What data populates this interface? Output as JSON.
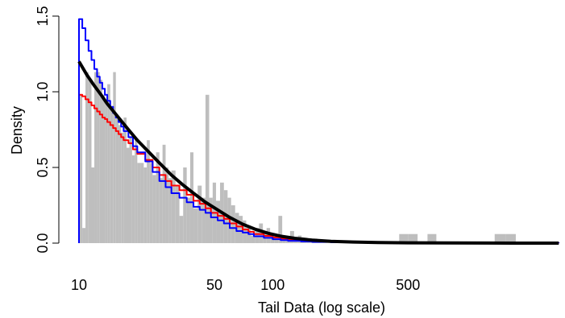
{
  "chart_data": {
    "type": "histogram",
    "title": "",
    "xlabel": "Tail Data (log scale)",
    "ylabel": "Density",
    "x_scale": "log",
    "xlim": [
      10,
      3200
    ],
    "ylim": [
      0,
      1.5
    ],
    "x_ticks": [
      {
        "value": 10,
        "label": "10"
      },
      {
        "value": 50,
        "label": "50"
      },
      {
        "value": 100,
        "label": "100"
      },
      {
        "value": 500,
        "label": "500"
      }
    ],
    "y_ticks": [
      {
        "value": 0.0,
        "label": "0.0"
      },
      {
        "value": 0.5,
        "label": "0.5"
      },
      {
        "value": 1.0,
        "label": "1.0"
      },
      {
        "value": 1.5,
        "label": "1.5"
      }
    ],
    "grid": false,
    "colors": {
      "histogram": "#bebebe",
      "fitted_curve": "#000000",
      "blue_series": "#0000ff",
      "red_series": "#ff0000"
    },
    "histogram": {
      "bin_edges": [
        10,
        10.4,
        10.8,
        11.2,
        11.6,
        12,
        12.4,
        12.8,
        13.2,
        13.6,
        14,
        14.5,
        15,
        15.5,
        16,
        16.5,
        17,
        17.6,
        18.2,
        18.8,
        19.4,
        20,
        20.8,
        21.6,
        22.4,
        23.2,
        24,
        25,
        26,
        27,
        28,
        29,
        30,
        31.5,
        33,
        34.5,
        36,
        37.5,
        39,
        41,
        43,
        45,
        47,
        49,
        51,
        53.5,
        56,
        58.5,
        61,
        64,
        67,
        70,
        73,
        77,
        81,
        85,
        89,
        93,
        97,
        102,
        107,
        112,
        117,
        123,
        129,
        135,
        141,
        150,
        160,
        170,
        180,
        200,
        220,
        250,
        280,
        320,
        360,
        400,
        450,
        500,
        560,
        630,
        700,
        800,
        900,
        1000,
        1200,
        1400,
        1600,
        1800,
        2000,
        2300,
        2600,
        3000
      ],
      "densities": [
        0.98,
        0.1,
        1.13,
        1.08,
        0.5,
        1.13,
        1.13,
        1.08,
        0.98,
        0.93,
        1.05,
        0.88,
        1.13,
        0.83,
        0.78,
        0.73,
        0.83,
        0.63,
        0.7,
        0.58,
        0.68,
        0.53,
        0.53,
        0.5,
        0.68,
        0.53,
        0.45,
        0.6,
        0.43,
        0.65,
        0.5,
        0.43,
        0.48,
        0.38,
        0.18,
        0.5,
        0.3,
        0.6,
        0.23,
        0.38,
        0.3,
        0.98,
        0.3,
        0.4,
        0.28,
        0.4,
        0.35,
        0.3,
        0.25,
        0.2,
        0.18,
        0.15,
        0.1,
        0.05,
        0.1,
        0.13,
        0.08,
        0.1,
        0.05,
        0.03,
        0.18,
        0.05,
        0.03,
        0.08,
        0.03,
        0.05,
        0.03,
        0.02,
        0.03,
        0.01,
        0.02,
        0.01,
        0.01,
        0.01,
        0.01,
        0.0,
        0.01,
        0.0,
        0.06,
        0.06,
        0.0,
        0.06,
        0.0,
        0.0,
        0.0,
        0.0,
        0.0,
        0.06,
        0.06,
        0.0,
        0.0,
        0.0,
        0.0
      ]
    },
    "series": [
      {
        "color": "#000000",
        "style": "smooth",
        "x": [
          10,
          11,
          12,
          13,
          14,
          16,
          18,
          20,
          23,
          26,
          30,
          34,
          39,
          45,
          52,
          60,
          70,
          82,
          95,
          110,
          130,
          160,
          200,
          260,
          350,
          500,
          800,
          1300,
          2000,
          3000
        ],
        "y": [
          1.2,
          1.11,
          1.04,
          0.98,
          0.92,
          0.83,
          0.75,
          0.68,
          0.6,
          0.53,
          0.45,
          0.39,
          0.33,
          0.27,
          0.22,
          0.17,
          0.125,
          0.09,
          0.065,
          0.046,
          0.032,
          0.02,
          0.012,
          0.007,
          0.004,
          0.002,
          0.001,
          0.0005,
          0.0002,
          0.0001
        ]
      },
      {
        "color": "#0000ff",
        "style": "step",
        "x": [
          10,
          10.4,
          10.8,
          11.2,
          11.6,
          12,
          12.4,
          12.8,
          13.2,
          13.6,
          14,
          14.5,
          15,
          15.5,
          16,
          16.5,
          17,
          18,
          19,
          20,
          22,
          24,
          26,
          28,
          30,
          33,
          36,
          39,
          42,
          45,
          48,
          52,
          56,
          60,
          65,
          70,
          75,
          80,
          90,
          100,
          110,
          120,
          140,
          160,
          200,
          250,
          320,
          400,
          550,
          800,
          1200,
          2000,
          3000
        ],
        "y": [
          1.48,
          1.42,
          1.34,
          1.27,
          1.21,
          1.15,
          1.1,
          1.06,
          1.02,
          0.98,
          0.94,
          0.9,
          0.86,
          0.83,
          0.8,
          0.77,
          0.74,
          0.7,
          0.64,
          0.6,
          0.54,
          0.47,
          0.41,
          0.37,
          0.33,
          0.3,
          0.27,
          0.24,
          0.22,
          0.2,
          0.17,
          0.15,
          0.13,
          0.1,
          0.08,
          0.07,
          0.06,
          0.045,
          0.035,
          0.026,
          0.02,
          0.015,
          0.011,
          0.008,
          0.005,
          0.003,
          0.002,
          0.0015,
          0.001,
          0.0007,
          0.0004,
          0.0002,
          0.0
        ]
      },
      {
        "color": "#ff0000",
        "style": "step",
        "x": [
          10,
          10.4,
          10.8,
          11.2,
          11.6,
          12,
          12.4,
          12.8,
          13.2,
          13.6,
          14,
          14.5,
          15,
          15.5,
          16,
          16.5,
          17,
          18,
          19,
          20,
          22,
          24,
          26,
          28,
          30,
          33,
          36,
          39,
          42,
          45,
          48,
          52,
          56,
          60,
          65,
          70,
          75,
          80,
          90,
          100,
          110,
          120,
          140,
          160,
          200,
          250,
          320,
          400,
          550,
          800,
          1200,
          2000,
          3000
        ],
        "y": [
          0.98,
          0.97,
          0.95,
          0.93,
          0.91,
          0.89,
          0.87,
          0.85,
          0.83,
          0.82,
          0.8,
          0.78,
          0.76,
          0.74,
          0.72,
          0.7,
          0.68,
          0.66,
          0.62,
          0.59,
          0.55,
          0.5,
          0.45,
          0.41,
          0.38,
          0.35,
          0.32,
          0.28,
          0.26,
          0.23,
          0.2,
          0.18,
          0.16,
          0.13,
          0.11,
          0.09,
          0.075,
          0.06,
          0.048,
          0.038,
          0.03,
          0.023,
          0.018,
          0.013,
          0.009,
          0.006,
          0.004,
          0.003,
          0.002,
          0.0015,
          0.001,
          0.0005,
          0.0
        ]
      }
    ]
  }
}
